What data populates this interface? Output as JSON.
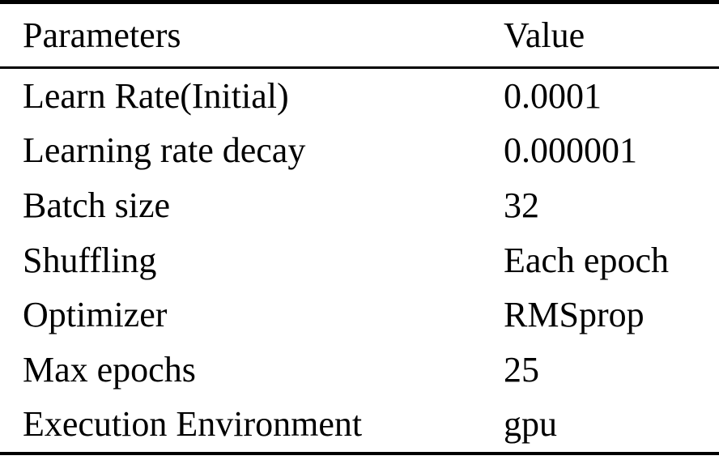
{
  "table": {
    "header": {
      "parameters": "Parameters",
      "value": "Value"
    },
    "rows": [
      {
        "param": "Learn Rate(Initial)",
        "value": "0.0001"
      },
      {
        "param": "Learning rate decay",
        "value": "0.000001"
      },
      {
        "param": "Batch size",
        "value": "32"
      },
      {
        "param": "Shuffling",
        "value": "Each epoch"
      },
      {
        "param": "Optimizer",
        "value": "RMSprop"
      },
      {
        "param": "Max epochs",
        "value": "25"
      },
      {
        "param": "Execution Environment",
        "value": "gpu"
      }
    ],
    "style": {
      "text_color": "#000000",
      "rule_color": "#000000",
      "background": "#ffffff"
    }
  }
}
